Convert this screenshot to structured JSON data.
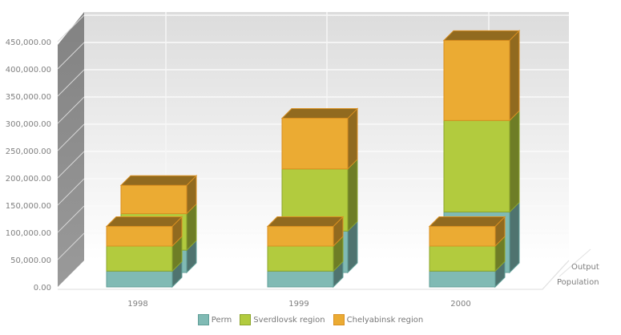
{
  "chart_data": {
    "type": "bar",
    "subtype": "3d-stacked",
    "title": "",
    "xlabel": "",
    "ylabel": "",
    "categories": [
      "1998",
      "1999",
      "2000"
    ],
    "ylim": [
      0,
      450000
    ],
    "yticks": [
      "0.00",
      "50,000.00",
      "100,000.00",
      "150,000.00",
      "200,000.00",
      "250,000.00",
      "300,000.00",
      "350,000.00",
      "400,000.00",
      "450,000.00"
    ],
    "grid": true,
    "legend_position": "bottom",
    "depth_series": [
      "Output",
      "Population"
    ],
    "series": [
      {
        "name": "Perm",
        "color": "#80bab4",
        "Population": [
          29000,
          29000,
          29000
        ],
        "Output": [
          41000,
          76000,
          111000
        ]
      },
      {
        "name": "Sverdlovsk region",
        "color": "#b2cb3e",
        "Population": [
          46000,
          46000,
          46000
        ],
        "Output": [
          67000,
          114000,
          168000
        ]
      },
      {
        "name": "Chelyabinsk region",
        "color": "#ebab33",
        "Population": [
          36000,
          36000,
          36000
        ],
        "Output": [
          52000,
          93000,
          147000
        ]
      }
    ]
  }
}
